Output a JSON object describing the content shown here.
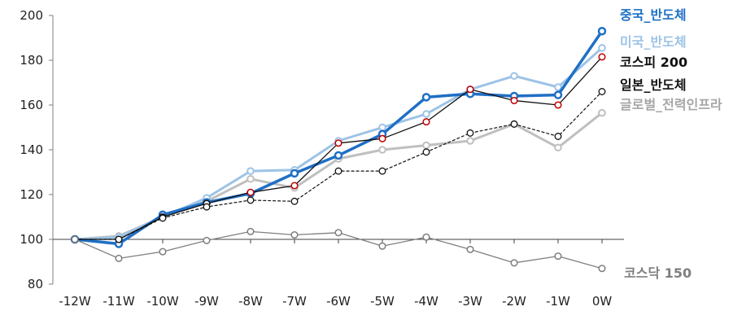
{
  "chart_data": {
    "type": "line",
    "title": "",
    "xlabel": "",
    "ylabel": "",
    "ylim": [
      80,
      200
    ],
    "yticks": [
      80,
      100,
      120,
      140,
      160,
      180,
      200
    ],
    "categories": [
      "-12W",
      "-11W",
      "-10W",
      "-9W",
      "-8W",
      "-7W",
      "-6W",
      "-5W",
      "-4W",
      "-3W",
      "-2W",
      "-1W",
      "0W"
    ],
    "grid": false,
    "legend_position": "right",
    "series": [
      {
        "name": "글로벌_전력인프라",
        "color": "#bfbfbf",
        "style": "solid-thick",
        "values": [
          100,
          101.5,
          110,
          117,
          127,
          123,
          136,
          140,
          142,
          144,
          151.5,
          141,
          156.5
        ]
      },
      {
        "name": "미국_반도체",
        "color": "#9dc3e6",
        "style": "solid-thick",
        "values": [
          100,
          101,
          110,
          118.5,
          130.5,
          131,
          144,
          150,
          156,
          167,
          173,
          168,
          185.5
        ]
      },
      {
        "name": "중국_반도체",
        "color": "#1f6fc5",
        "style": "solid-bold",
        "values": [
          100,
          98,
          111,
          116.5,
          120.5,
          129.5,
          137.5,
          147,
          163.5,
          165,
          164,
          164.5,
          193
        ]
      },
      {
        "name": "코스피 200",
        "color": "#111111",
        "style": "solid-thin",
        "values": [
          100,
          100,
          110,
          116,
          121,
          124,
          143,
          145,
          152.5,
          167,
          162,
          160,
          181.5
        ]
      },
      {
        "name": "일본_반도체",
        "color": "#111111",
        "style": "dashed",
        "values": [
          100,
          100,
          109.5,
          114.5,
          117.5,
          117,
          130.5,
          130.5,
          139,
          147.5,
          151.5,
          146,
          166
        ]
      },
      {
        "name": "코스닥 150",
        "color": "#7f7f7f",
        "style": "solid-thin",
        "values": [
          100,
          91.5,
          94.5,
          99.5,
          103.5,
          102,
          103,
          97,
          101,
          95.5,
          89.5,
          92.5,
          87
        ]
      }
    ],
    "legend": [
      {
        "label": "중국_반도체",
        "color": "#1f6fc5"
      },
      {
        "label": "미국_반도체",
        "color": "#9dc3e6"
      },
      {
        "label": "코스피 200",
        "color": "#111111"
      },
      {
        "label": "일본_반도체",
        "color": "#111111"
      },
      {
        "label": "글로벌_전력인프라",
        "color": "#a6a6a6"
      },
      {
        "label": "코스닥 150",
        "color": "#7f7f7f"
      }
    ]
  }
}
